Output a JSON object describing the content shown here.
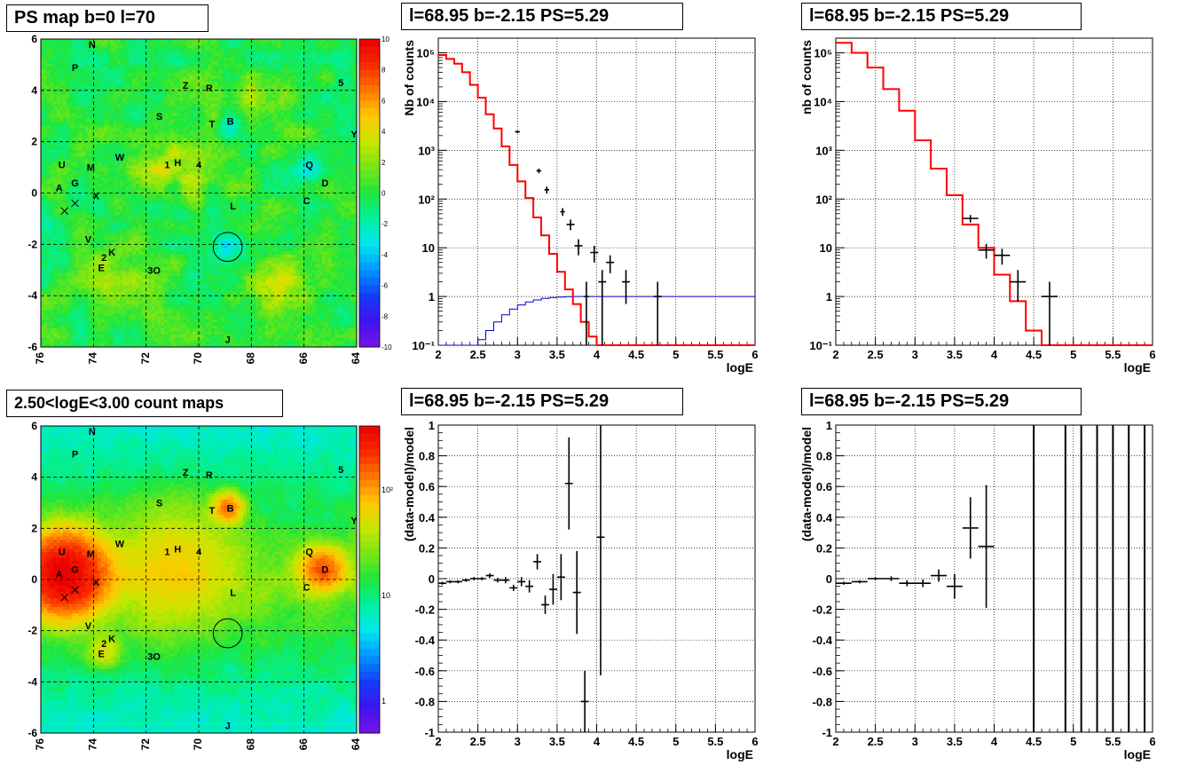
{
  "titles": {
    "ps_map": "PS map b=0 l=70",
    "count_map": "2.50<logE<3.00 count maps",
    "spec_left": "l=68.95 b=-2.15 PS=5.29",
    "spec_right": "l=68.95 b=-2.15 PS=5.29",
    "resid_left": "l=68.95 b=-2.15 PS=5.29",
    "resid_right": "l=68.95 b=-2.15 PS=5.29"
  },
  "colors": {
    "data": "#000000",
    "model": "#ff0000",
    "acceptance": "#0000cc",
    "grid": "#000000"
  },
  "chart_data": [
    {
      "id": "ps_map",
      "type": "heatmap",
      "title": "PS map b=0 l=70",
      "x_ticks": [
        "76",
        "74",
        "72",
        "70",
        "68",
        "66",
        "64"
      ],
      "y_ticks": [
        "6",
        "4",
        "2",
        "0",
        "-2",
        "-4",
        "-6"
      ],
      "xlim": [
        76,
        64
      ],
      "ylim": [
        -6,
        6
      ],
      "colorbar_ticks": [
        "10",
        "8",
        "6",
        "4",
        "2",
        "0",
        "-2",
        "-4",
        "-6",
        "-8",
        "-10"
      ],
      "colorbar_range": [
        -10,
        10
      ],
      "background_level": 0,
      "hotspots": [
        {
          "l": 71.3,
          "b": 1.2,
          "level": 3
        },
        {
          "l": 67.0,
          "b": -3.5,
          "level": 4
        },
        {
          "l": 73.2,
          "b": -3.0,
          "level": 2
        },
        {
          "l": 67.6,
          "b": 3.6,
          "level": 2
        },
        {
          "l": 70.4,
          "b": 0.6,
          "level": 2
        }
      ],
      "coldspots": [
        {
          "l": 68.9,
          "b": -2.1,
          "level": -3
        },
        {
          "l": 68.9,
          "b": 2.6,
          "level": -2
        },
        {
          "l": 70.6,
          "b": -0.8,
          "level": -2
        },
        {
          "l": 65.8,
          "b": 0.9,
          "level": -2
        },
        {
          "l": 74.6,
          "b": -0.4,
          "level": -2
        }
      ],
      "markers": [
        {
          "text": "N",
          "l": 74.05,
          "b": 5.8
        },
        {
          "text": "P",
          "l": 74.7,
          "b": 4.9
        },
        {
          "text": "Z",
          "l": 70.5,
          "b": 4.2
        },
        {
          "text": "R",
          "l": 69.6,
          "b": 4.1
        },
        {
          "text": "5",
          "l": 64.6,
          "b": 4.3
        },
        {
          "text": "S",
          "l": 71.5,
          "b": 3.0
        },
        {
          "text": "T",
          "l": 69.5,
          "b": 2.7
        },
        {
          "text": "B",
          "l": 68.8,
          "b": 2.8
        },
        {
          "text": "Y",
          "l": 64.1,
          "b": 2.3
        },
        {
          "text": "W",
          "l": 73.0,
          "b": 1.4
        },
        {
          "text": "U",
          "l": 75.2,
          "b": 1.1
        },
        {
          "text": "M",
          "l": 74.1,
          "b": 1.0
        },
        {
          "text": "1",
          "l": 71.2,
          "b": 1.1
        },
        {
          "text": "H",
          "l": 70.8,
          "b": 1.2
        },
        {
          "text": "4",
          "l": 70.0,
          "b": 1.1
        },
        {
          "text": "Q",
          "l": 65.8,
          "b": 1.1
        },
        {
          "text": "G",
          "l": 74.7,
          "b": 0.4
        },
        {
          "text": "D",
          "l": 65.2,
          "b": 0.4
        },
        {
          "text": "A",
          "l": 75.3,
          "b": 0.2
        },
        {
          "text": "X",
          "l": 73.9,
          "b": -0.1
        },
        {
          "text": "C",
          "l": 65.9,
          "b": -0.3
        },
        {
          "text": "L",
          "l": 68.7,
          "b": -0.5
        },
        {
          "text": "V",
          "l": 74.2,
          "b": -1.8
        },
        {
          "text": "2",
          "l": 73.6,
          "b": -2.5
        },
        {
          "text": "K",
          "l": 73.3,
          "b": -2.3
        },
        {
          "text": "E",
          "l": 73.7,
          "b": -2.9
        },
        {
          "text": "3O",
          "l": 71.7,
          "b": -3.0
        },
        {
          "text": "J",
          "l": 68.9,
          "b": -5.7
        }
      ],
      "crosses": [
        {
          "l": 75.1,
          "b": -0.7
        },
        {
          "l": 74.7,
          "b": -0.4
        }
      ],
      "circle": {
        "l": 68.9,
        "b": -2.1,
        "r": 0.55
      }
    },
    {
      "id": "count_map",
      "type": "heatmap",
      "title": "2.50<logE<3.00 count maps",
      "x_ticks": [
        "76",
        "74",
        "72",
        "70",
        "68",
        "66",
        "64"
      ],
      "y_ticks": [
        "6",
        "4",
        "2",
        "0",
        "-2",
        "-4",
        "-6"
      ],
      "xlim": [
        76,
        64
      ],
      "ylim": [
        -6,
        6
      ],
      "colorbar_ticks": [
        "10²",
        "10",
        "1"
      ],
      "colorbar_log": true,
      "colorbar_range": [
        0.5,
        400
      ],
      "background_level": 25,
      "sources": [
        {
          "l": 75.1,
          "b": 0.2,
          "level": 400,
          "width": 0.9
        },
        {
          "l": 65.3,
          "b": 0.4,
          "level": 150,
          "width": 0.5
        },
        {
          "l": 68.9,
          "b": 2.8,
          "level": 120,
          "width": 0.35
        },
        {
          "l": 71.0,
          "b": 0.5,
          "level": 45,
          "width": 1.5
        },
        {
          "l": 73.6,
          "b": -2.8,
          "level": 40,
          "width": 0.4
        }
      ],
      "markers": [
        {
          "text": "N",
          "l": 74.05,
          "b": 5.8
        },
        {
          "text": "P",
          "l": 74.7,
          "b": 4.9
        },
        {
          "text": "Z",
          "l": 70.5,
          "b": 4.2
        },
        {
          "text": "R",
          "l": 69.6,
          "b": 4.1
        },
        {
          "text": "5",
          "l": 64.6,
          "b": 4.3
        },
        {
          "text": "S",
          "l": 71.5,
          "b": 3.0
        },
        {
          "text": "T",
          "l": 69.5,
          "b": 2.7
        },
        {
          "text": "B",
          "l": 68.8,
          "b": 2.8
        },
        {
          "text": "Y",
          "l": 64.1,
          "b": 2.3
        },
        {
          "text": "W",
          "l": 73.0,
          "b": 1.4
        },
        {
          "text": "U",
          "l": 75.2,
          "b": 1.1
        },
        {
          "text": "M",
          "l": 74.1,
          "b": 1.0
        },
        {
          "text": "1",
          "l": 71.2,
          "b": 1.1
        },
        {
          "text": "H",
          "l": 70.8,
          "b": 1.2
        },
        {
          "text": "4",
          "l": 70.0,
          "b": 1.1
        },
        {
          "text": "Q",
          "l": 65.8,
          "b": 1.1
        },
        {
          "text": "G",
          "l": 74.7,
          "b": 0.4
        },
        {
          "text": "D",
          "l": 65.2,
          "b": 0.4
        },
        {
          "text": "A",
          "l": 75.3,
          "b": 0.2
        },
        {
          "text": "X",
          "l": 73.9,
          "b": -0.1
        },
        {
          "text": "C",
          "l": 65.9,
          "b": -0.3
        },
        {
          "text": "L",
          "l": 68.7,
          "b": -0.5
        },
        {
          "text": "V",
          "l": 74.2,
          "b": -1.8
        },
        {
          "text": "2",
          "l": 73.6,
          "b": -2.5
        },
        {
          "text": "K",
          "l": 73.3,
          "b": -2.3
        },
        {
          "text": "E",
          "l": 73.7,
          "b": -2.9
        },
        {
          "text": "3O",
          "l": 71.7,
          "b": -3.0
        },
        {
          "text": "J",
          "l": 68.9,
          "b": -5.7
        }
      ],
      "crosses": [
        {
          "l": 75.1,
          "b": -0.7
        },
        {
          "l": 74.7,
          "b": -0.4
        }
      ],
      "circle": {
        "l": 68.9,
        "b": -2.1,
        "r": 0.55
      }
    },
    {
      "id": "spec_left",
      "type": "line",
      "title": "l=68.95 b=-2.15 PS=5.29",
      "xlabel": "logE",
      "ylabel": "Nb of counts",
      "xlim": [
        2,
        6
      ],
      "ylim": [
        0.1,
        200000
      ],
      "ylog": true,
      "grid": true,
      "x_ticks": [
        "2",
        "2.5",
        "3",
        "3.5",
        "4",
        "4.5",
        "5",
        "5.5",
        "6"
      ],
      "y_ticks": [
        "10⁻¹",
        "1",
        "10",
        "10²",
        "10³",
        "10⁴",
        "10⁵"
      ],
      "model_step": {
        "edges": [
          2.0,
          2.1,
          2.2,
          2.3,
          2.4,
          2.5,
          2.6,
          2.7,
          2.8,
          2.9,
          3.0,
          3.1,
          3.2,
          3.3,
          3.4,
          3.5,
          3.6,
          3.7,
          3.8,
          3.9,
          4.0,
          4.1,
          4.2,
          4.3,
          4.4,
          4.5,
          4.6,
          4.7,
          4.8,
          4.9,
          5.0,
          5.1,
          5.2,
          5.3,
          5.4,
          5.5,
          5.6,
          5.7,
          5.8,
          5.9,
          6.0
        ],
        "values": [
          90000,
          75000,
          60000,
          40000,
          22000,
          12000,
          5500,
          2800,
          1200,
          500,
          230,
          105,
          42,
          18,
          7.5,
          3.2,
          1.4,
          0.7,
          0.3,
          0.15,
          0.1,
          0.1,
          0.1,
          0.1,
          0.1,
          0.1,
          0.1,
          0.1,
          0.1,
          0.1,
          0.1,
          0.1,
          0.1,
          0.1,
          0.1,
          0.1,
          0.1,
          0.1,
          0.1,
          0.1
        ]
      },
      "accept_step": {
        "edges": [
          2.0,
          2.5,
          2.6,
          2.7,
          2.8,
          2.9,
          3.0,
          3.1,
          3.2,
          3.3,
          3.4,
          3.5,
          3.6,
          3.7,
          3.8,
          6.0
        ],
        "values": [
          0.1,
          0.13,
          0.2,
          0.3,
          0.42,
          0.55,
          0.67,
          0.77,
          0.85,
          0.91,
          0.95,
          0.97,
          0.99,
          1.0,
          1.0
        ]
      },
      "points": [
        {
          "x": 3.0,
          "y": 2400,
          "xerr": 0.03,
          "ylo": 2250,
          "yhi": 2550
        },
        {
          "x": 3.27,
          "y": 380,
          "xerr": 0.03,
          "ylo": 340,
          "yhi": 420
        },
        {
          "x": 3.37,
          "y": 155,
          "xerr": 0.03,
          "ylo": 130,
          "yhi": 180
        },
        {
          "x": 3.57,
          "y": 55,
          "xerr": 0.03,
          "ylo": 45,
          "yhi": 65
        },
        {
          "x": 3.67,
          "y": 30,
          "xerr": 0.05,
          "ylo": 23,
          "yhi": 38
        },
        {
          "x": 3.77,
          "y": 11,
          "xerr": 0.05,
          "ylo": 7,
          "yhi": 15
        },
        {
          "x": 3.87,
          "y": 1,
          "xerr": 0.03,
          "ylo": 0.1,
          "yhi": 2
        },
        {
          "x": 3.97,
          "y": 8,
          "xerr": 0.05,
          "ylo": 5,
          "yhi": 11
        },
        {
          "x": 4.07,
          "y": 2,
          "xerr": 0.05,
          "ylo": 0.1,
          "yhi": 3.5
        },
        {
          "x": 4.17,
          "y": 5,
          "xerr": 0.05,
          "ylo": 3,
          "yhi": 7
        },
        {
          "x": 4.37,
          "y": 2,
          "xerr": 0.05,
          "ylo": 0.7,
          "yhi": 3.5
        },
        {
          "x": 4.77,
          "y": 1,
          "xerr": 0.05,
          "ylo": 0.1,
          "yhi": 2
        }
      ]
    },
    {
      "id": "spec_right",
      "type": "line",
      "title": "l=68.95 b=-2.15 PS=5.29",
      "xlabel": "logE",
      "ylabel": "nb of counts",
      "xlim": [
        2,
        6
      ],
      "ylim": [
        0.1,
        200000
      ],
      "ylog": true,
      "grid": true,
      "x_ticks": [
        "2",
        "2.5",
        "3",
        "3.5",
        "4",
        "4.5",
        "5",
        "5.5",
        "6"
      ],
      "y_ticks": [
        "10⁻¹",
        "1",
        "10",
        "10²",
        "10³",
        "10⁴",
        "10⁵"
      ],
      "model_step": {
        "edges": [
          2.0,
          2.2,
          2.4,
          2.6,
          2.8,
          3.0,
          3.2,
          3.4,
          3.6,
          3.8,
          4.0,
          4.2,
          4.4,
          4.6,
          4.8,
          5.0,
          5.2,
          5.4,
          5.6,
          5.8,
          6.0
        ],
        "values": [
          160000,
          100000,
          50000,
          18000,
          6500,
          1600,
          420,
          120,
          30,
          10,
          2.8,
          0.8,
          0.2,
          0.1,
          0.1,
          0.1,
          0.1,
          0.1,
          0.1,
          0.1
        ]
      },
      "points": [
        {
          "x": 3.7,
          "y": 40,
          "xerr": 0.1,
          "ylo": 33,
          "yhi": 47
        },
        {
          "x": 3.9,
          "y": 9,
          "xerr": 0.1,
          "ylo": 6,
          "yhi": 12
        },
        {
          "x": 4.1,
          "y": 7,
          "xerr": 0.1,
          "ylo": 4.5,
          "yhi": 9.5
        },
        {
          "x": 4.3,
          "y": 2,
          "xerr": 0.1,
          "ylo": 0.8,
          "yhi": 3.5
        },
        {
          "x": 4.7,
          "y": 1,
          "xerr": 0.1,
          "ylo": 0.1,
          "yhi": 2
        }
      ]
    },
    {
      "id": "resid_left",
      "type": "scatter",
      "title": "l=68.95 b=-2.15 PS=5.29",
      "xlabel": "logE",
      "ylabel": "(data-model)/model",
      "xlim": [
        2,
        6
      ],
      "ylim": [
        -1,
        1
      ],
      "grid": true,
      "x_ticks": [
        "2",
        "2.5",
        "3",
        "3.5",
        "4",
        "4.5",
        "5",
        "5.5",
        "6"
      ],
      "y_ticks": [
        "1",
        "0.8",
        "0.6",
        "0.4",
        "0.2",
        "0",
        "-0.2",
        "-0.4",
        "-0.6",
        "-0.8",
        "-1"
      ],
      "points": [
        {
          "x": 2.05,
          "y": -0.03,
          "xerr": 0.05,
          "err": 0.01
        },
        {
          "x": 2.15,
          "y": -0.02,
          "xerr": 0.05,
          "err": 0.01
        },
        {
          "x": 2.25,
          "y": -0.02,
          "xerr": 0.05,
          "err": 0.01
        },
        {
          "x": 2.35,
          "y": -0.01,
          "xerr": 0.05,
          "err": 0.01
        },
        {
          "x": 2.45,
          "y": 0.0,
          "xerr": 0.05,
          "err": 0.01
        },
        {
          "x": 2.55,
          "y": 0.0,
          "xerr": 0.05,
          "err": 0.01
        },
        {
          "x": 2.65,
          "y": 0.02,
          "xerr": 0.05,
          "err": 0.015
        },
        {
          "x": 2.75,
          "y": -0.01,
          "xerr": 0.05,
          "err": 0.015
        },
        {
          "x": 2.85,
          "y": -0.01,
          "xerr": 0.05,
          "err": 0.02
        },
        {
          "x": 2.95,
          "y": -0.06,
          "xerr": 0.05,
          "err": 0.02
        },
        {
          "x": 3.05,
          "y": -0.02,
          "xerr": 0.05,
          "err": 0.03
        },
        {
          "x": 3.15,
          "y": -0.05,
          "xerr": 0.05,
          "err": 0.04
        },
        {
          "x": 3.25,
          "y": 0.11,
          "xerr": 0.05,
          "err": 0.05
        },
        {
          "x": 3.35,
          "y": -0.17,
          "xerr": 0.05,
          "err": 0.06
        },
        {
          "x": 3.45,
          "y": -0.07,
          "xerr": 0.05,
          "err": 0.1
        },
        {
          "x": 3.55,
          "y": 0.01,
          "xerr": 0.05,
          "err": 0.15
        },
        {
          "x": 3.65,
          "y": 0.62,
          "xerr": 0.05,
          "err": 0.3
        },
        {
          "x": 3.75,
          "y": -0.09,
          "xerr": 0.05,
          "err": 0.27
        },
        {
          "x": 3.85,
          "y": -0.8,
          "xerr": 0.05,
          "err": 0.2
        },
        {
          "x": 4.05,
          "y": 0.27,
          "xerr": 0.05,
          "err": 0.9
        }
      ]
    },
    {
      "id": "resid_right",
      "type": "scatter",
      "title": "l=68.95 b=-2.15 PS=5.29",
      "xlabel": "logE",
      "ylabel": "(data-model)/model",
      "xlim": [
        2,
        6
      ],
      "ylim": [
        -1,
        1
      ],
      "grid": true,
      "x_ticks": [
        "2",
        "2.5",
        "3",
        "3.5",
        "4",
        "4.5",
        "5",
        "5.5",
        "6"
      ],
      "y_ticks": [
        "1",
        "0.8",
        "0.6",
        "0.4",
        "0.2",
        "0",
        "-0.2",
        "-0.4",
        "-0.6",
        "-0.8",
        "-1"
      ],
      "points": [
        {
          "x": 2.1,
          "y": -0.03,
          "xerr": 0.1,
          "err": 0.01
        },
        {
          "x": 2.3,
          "y": -0.02,
          "xerr": 0.1,
          "err": 0.01
        },
        {
          "x": 2.5,
          "y": 0.0,
          "xerr": 0.1,
          "err": 0.01
        },
        {
          "x": 2.7,
          "y": 0.0,
          "xerr": 0.1,
          "err": 0.015
        },
        {
          "x": 2.9,
          "y": -0.03,
          "xerr": 0.1,
          "err": 0.02
        },
        {
          "x": 3.1,
          "y": -0.03,
          "xerr": 0.1,
          "err": 0.025
        },
        {
          "x": 3.3,
          "y": 0.02,
          "xerr": 0.1,
          "err": 0.04
        },
        {
          "x": 3.5,
          "y": -0.05,
          "xerr": 0.1,
          "err": 0.08
        },
        {
          "x": 3.7,
          "y": 0.33,
          "xerr": 0.1,
          "err": 0.2
        },
        {
          "x": 3.9,
          "y": 0.21,
          "xerr": 0.1,
          "err": 0.4
        }
      ],
      "vlines": [
        4.5,
        4.9,
        5.1,
        5.3,
        5.5,
        5.7,
        5.9
      ]
    }
  ]
}
